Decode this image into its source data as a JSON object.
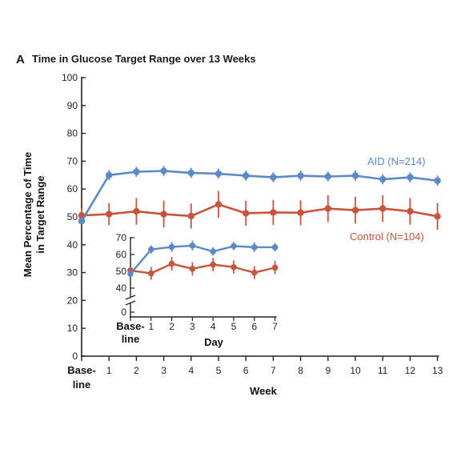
{
  "panel_label": "A",
  "title": "Time in Glucose Target Range over 13 Weeks",
  "colors": {
    "aid": "#5b8ac6",
    "control": "#c8543c",
    "axis": "#222222"
  },
  "chart_data": [
    {
      "type": "line",
      "title": "Time in Glucose Target Range over 13 Weeks",
      "xlabel": "Week",
      "ylabel_lines": [
        "Mean Percentage of Time",
        "in Target Range"
      ],
      "x": [
        "Base-line",
        1,
        2,
        3,
        4,
        5,
        6,
        7,
        8,
        9,
        10,
        11,
        12,
        13
      ],
      "x_tick_labels": [
        "1",
        "2",
        "3",
        "4",
        "5",
        "6",
        "7",
        "8",
        "9",
        "10",
        "11",
        "12",
        "13"
      ],
      "baseline_label_lines": [
        "Base-",
        "line"
      ],
      "ylim": [
        0,
        100
      ],
      "y_ticks": [
        0,
        10,
        20,
        30,
        40,
        50,
        60,
        70,
        80,
        90,
        100
      ],
      "y_tick_labels": [
        "0",
        "10",
        "20",
        "30",
        "40",
        "50",
        "60",
        "70",
        "80",
        "90",
        "100"
      ],
      "grid": false,
      "series": [
        {
          "name": "AID (N=214)",
          "color_key": "aid",
          "values": [
            48.5,
            65,
            66.2,
            66.5,
            65.8,
            65.5,
            64.8,
            64.2,
            64.8,
            64.5,
            64.8,
            63.5,
            64.2,
            63
          ],
          "error": [
            1,
            1.8,
            1.8,
            1.8,
            1.8,
            1.8,
            1.8,
            1.8,
            1.8,
            1.8,
            1.8,
            1.8,
            1.8,
            1.8
          ]
        },
        {
          "name": "Control (N=104)",
          "color_key": "control",
          "values": [
            50.5,
            51,
            52,
            51,
            50.3,
            54.5,
            51.3,
            51.6,
            51.5,
            53,
            52.4,
            53,
            52,
            50.2
          ],
          "error": [
            2.5,
            4,
            4.8,
            4.8,
            4.5,
            4.8,
            4.5,
            4.5,
            4.5,
            4.8,
            4.8,
            4.8,
            4.8,
            4.8
          ]
        }
      ],
      "legend_placement": "right, next to each line"
    },
    {
      "type": "line",
      "inset": true,
      "xlabel": "Day",
      "x": [
        "Base-line",
        1,
        2,
        3,
        4,
        5,
        6,
        7
      ],
      "x_tick_labels": [
        "1",
        "2",
        "3",
        "4",
        "5",
        "6",
        "7"
      ],
      "baseline_label_lines": [
        "Base-",
        "line"
      ],
      "y_ticks": [
        0,
        40,
        50,
        60,
        70
      ],
      "y_tick_labels": [
        "0",
        "40",
        "50",
        "60",
        "70"
      ],
      "y_axis_break": true,
      "ylim": [
        40,
        70
      ],
      "grid": false,
      "series": [
        {
          "name": "AID",
          "color_key": "aid",
          "values": [
            48.5,
            63,
            64.5,
            65.3,
            61.8,
            65,
            64.3,
            64.3
          ],
          "error": [
            1,
            2.5,
            3,
            3,
            2.5,
            2.5,
            2.8,
            2.5
          ]
        },
        {
          "name": "Control",
          "color_key": "control",
          "values": [
            50.5,
            48.8,
            54.5,
            51.5,
            54,
            52.5,
            49.2,
            52.2
          ],
          "error": [
            1.5,
            3.8,
            4,
            4,
            4,
            4,
            3.8,
            4
          ]
        }
      ]
    }
  ]
}
